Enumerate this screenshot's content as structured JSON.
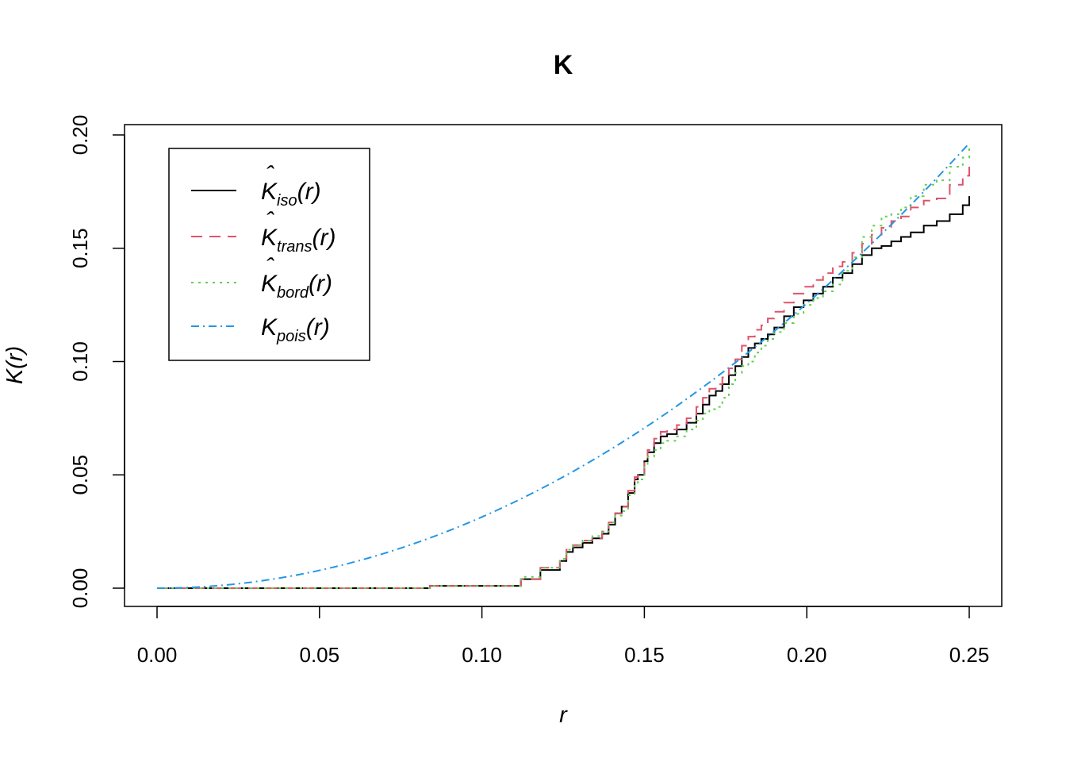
{
  "chart_data": {
    "type": "line",
    "title": "K",
    "xlabel": "r",
    "ylabel": "K(r)",
    "xlim": [
      0,
      0.25
    ],
    "ylim": [
      0,
      0.2
    ],
    "xticks": [
      "0.00",
      "0.05",
      "0.10",
      "0.15",
      "0.20",
      "0.25"
    ],
    "yticks": [
      "0.00",
      "0.05",
      "0.10",
      "0.15",
      "0.20"
    ],
    "grid": false,
    "legend_position": "top-left",
    "series": [
      {
        "key": "iso",
        "name": "K̂iso(r)",
        "sym": "K",
        "hat": true,
        "sub": "iso",
        "color": "#000000",
        "dash": "none",
        "x": [
          0,
          0.083,
          0.084,
          0.107,
          0.112,
          0.118,
          0.124,
          0.126,
          0.128,
          0.131,
          0.134,
          0.137,
          0.139,
          0.141,
          0.143,
          0.145,
          0.147,
          0.148,
          0.15,
          0.151,
          0.153,
          0.155,
          0.157,
          0.16,
          0.163,
          0.166,
          0.168,
          0.17,
          0.172,
          0.174,
          0.176,
          0.178,
          0.18,
          0.182,
          0.184,
          0.186,
          0.188,
          0.19,
          0.193,
          0.196,
          0.199,
          0.202,
          0.205,
          0.208,
          0.211,
          0.214,
          0.217,
          0.22,
          0.223,
          0.226,
          0.229,
          0.232,
          0.236,
          0.24,
          0.244,
          0.248,
          0.25
        ],
        "y": [
          0,
          0,
          0.001,
          0.001,
          0.004,
          0.008,
          0.012,
          0.016,
          0.018,
          0.02,
          0.022,
          0.024,
          0.028,
          0.033,
          0.036,
          0.042,
          0.048,
          0.05,
          0.056,
          0.06,
          0.064,
          0.067,
          0.068,
          0.07,
          0.073,
          0.077,
          0.081,
          0.085,
          0.087,
          0.09,
          0.094,
          0.098,
          0.102,
          0.106,
          0.108,
          0.11,
          0.112,
          0.115,
          0.12,
          0.124,
          0.127,
          0.13,
          0.133,
          0.137,
          0.139,
          0.143,
          0.147,
          0.15,
          0.151,
          0.153,
          0.155,
          0.157,
          0.16,
          0.162,
          0.165,
          0.169,
          0.173
        ]
      },
      {
        "key": "trans",
        "name": "K̂trans(r)",
        "sym": "K",
        "hat": true,
        "sub": "trans",
        "color": "#DF536B",
        "dash": "14,9",
        "x": [
          0,
          0.083,
          0.084,
          0.107,
          0.112,
          0.118,
          0.124,
          0.126,
          0.128,
          0.131,
          0.134,
          0.137,
          0.139,
          0.141,
          0.143,
          0.145,
          0.147,
          0.148,
          0.15,
          0.151,
          0.153,
          0.155,
          0.157,
          0.16,
          0.163,
          0.166,
          0.168,
          0.17,
          0.172,
          0.174,
          0.176,
          0.178,
          0.18,
          0.182,
          0.184,
          0.186,
          0.188,
          0.19,
          0.193,
          0.196,
          0.199,
          0.202,
          0.205,
          0.208,
          0.211,
          0.214,
          0.217,
          0.22,
          0.223,
          0.226,
          0.229,
          0.232,
          0.236,
          0.24,
          0.244,
          0.248,
          0.25
        ],
        "y": [
          0,
          0,
          0.001,
          0.001,
          0.004,
          0.009,
          0.012,
          0.017,
          0.019,
          0.021,
          0.022,
          0.025,
          0.029,
          0.033,
          0.036,
          0.043,
          0.049,
          0.051,
          0.057,
          0.061,
          0.066,
          0.069,
          0.07,
          0.072,
          0.075,
          0.08,
          0.084,
          0.088,
          0.09,
          0.093,
          0.097,
          0.101,
          0.107,
          0.111,
          0.114,
          0.116,
          0.119,
          0.122,
          0.126,
          0.13,
          0.133,
          0.136,
          0.139,
          0.142,
          0.144,
          0.148,
          0.152,
          0.156,
          0.159,
          0.162,
          0.164,
          0.168,
          0.171,
          0.172,
          0.178,
          0.182,
          0.186
        ]
      },
      {
        "key": "bord",
        "name": "K̂bord(r)",
        "sym": "K",
        "hat": true,
        "sub": "bord",
        "color": "#61D04F",
        "dash": "3,6",
        "x": [
          0,
          0.083,
          0.084,
          0.107,
          0.112,
          0.118,
          0.124,
          0.126,
          0.128,
          0.131,
          0.134,
          0.137,
          0.139,
          0.141,
          0.143,
          0.145,
          0.147,
          0.148,
          0.15,
          0.151,
          0.153,
          0.155,
          0.157,
          0.16,
          0.163,
          0.166,
          0.168,
          0.17,
          0.172,
          0.174,
          0.176,
          0.178,
          0.18,
          0.182,
          0.184,
          0.186,
          0.188,
          0.19,
          0.193,
          0.196,
          0.199,
          0.202,
          0.205,
          0.208,
          0.211,
          0.214,
          0.217,
          0.22,
          0.223,
          0.226,
          0.229,
          0.232,
          0.236,
          0.24,
          0.244,
          0.248,
          0.25
        ],
        "y": [
          0,
          0,
          0.001,
          0.001,
          0.005,
          0.009,
          0.013,
          0.017,
          0.019,
          0.021,
          0.023,
          0.025,
          0.029,
          0.032,
          0.034,
          0.041,
          0.046,
          0.048,
          0.054,
          0.058,
          0.061,
          0.064,
          0.065,
          0.067,
          0.07,
          0.074,
          0.077,
          0.079,
          0.08,
          0.084,
          0.09,
          0.095,
          0.098,
          0.1,
          0.104,
          0.107,
          0.11,
          0.113,
          0.117,
          0.121,
          0.125,
          0.128,
          0.131,
          0.134,
          0.14,
          0.146,
          0.155,
          0.16,
          0.164,
          0.165,
          0.168,
          0.173,
          0.178,
          0.18,
          0.186,
          0.19,
          0.196
        ]
      },
      {
        "key": "pois",
        "name": "Kpois(r)",
        "sym": "K",
        "hat": false,
        "sub": "pois",
        "color": "#2297E6",
        "dash": "10,5,2,5",
        "function": "pi*r^2"
      }
    ]
  }
}
